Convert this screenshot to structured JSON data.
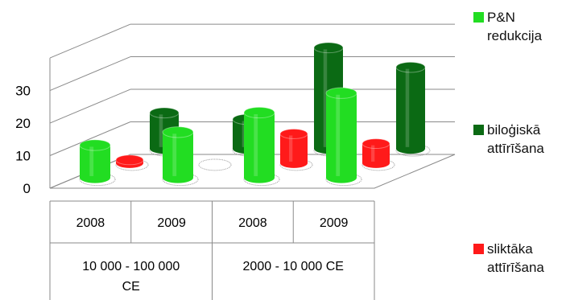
{
  "chart_data": {
    "type": "bar",
    "subtype": "3d-cylinder",
    "title": "",
    "xlabel": "",
    "ylabel": "",
    "ylim": [
      0,
      40
    ],
    "yticks": [
      "0",
      "10",
      "20",
      "30"
    ],
    "grid": true,
    "legend_position": "right",
    "categories": [
      {
        "year": "2008",
        "group": "10 000 - 100 000 CE"
      },
      {
        "year": "2009",
        "group": "10 000 - 100 000 CE"
      },
      {
        "year": "2008",
        "group": "2000 - 10 000 CE"
      },
      {
        "year": "2009",
        "group": "2000 - 10 000 CE"
      }
    ],
    "groups": [
      "10 000 - 100 000 CE",
      "2000 - 10 000 CE"
    ],
    "series": [
      {
        "name": "P&N redukcija",
        "color": "#22dd22",
        "values": [
          10,
          14,
          20,
          26
        ]
      },
      {
        "name": "biloģiskā attīrīšana",
        "color": "#0b6a14",
        "values": [
          11,
          9,
          31,
          25
        ]
      },
      {
        "name": "sliktāka attīrīšana",
        "color": "#ff1a1a",
        "values": [
          1,
          0,
          9,
          6
        ]
      }
    ]
  }
}
